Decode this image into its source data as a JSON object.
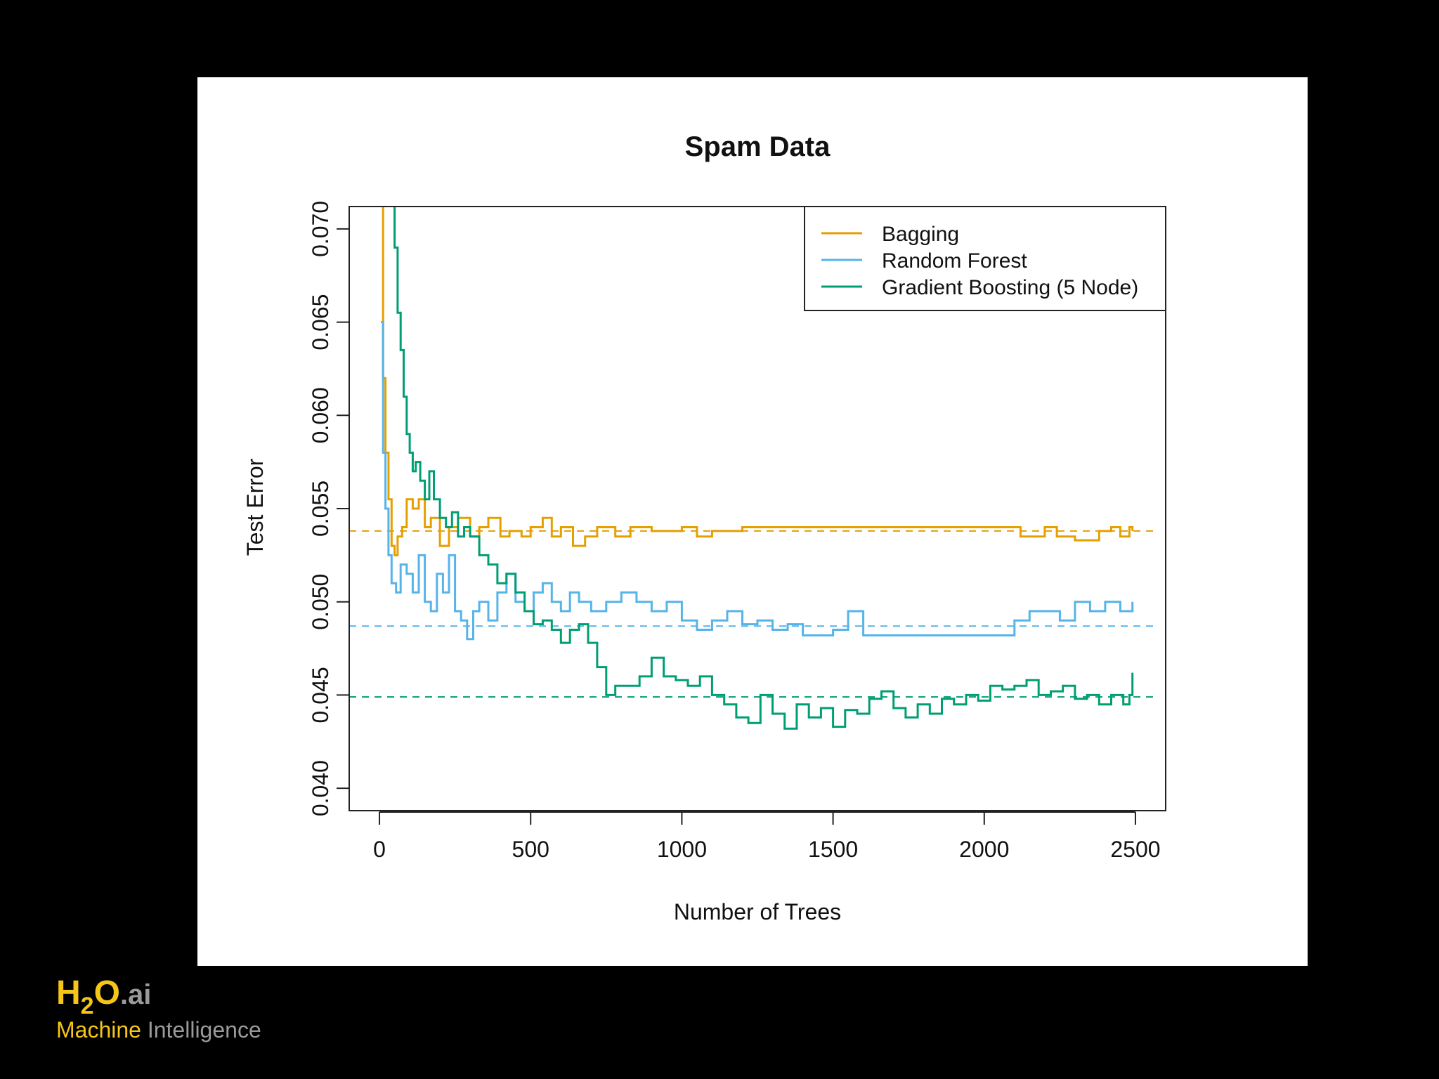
{
  "chart_data": {
    "type": "line",
    "title": "Spam Data",
    "xlabel": "Number of Trees",
    "ylabel": "Test Error",
    "xlim": [
      -100,
      2600
    ],
    "ylim": [
      0.0388,
      0.0712
    ],
    "xticks": [
      0,
      500,
      1000,
      1500,
      2000,
      2500
    ],
    "yticks": [
      0.04,
      0.045,
      0.05,
      0.055,
      0.06,
      0.065,
      0.07
    ],
    "xtick_labels": [
      "0",
      "500",
      "1000",
      "1500",
      "2000",
      "2500"
    ],
    "ytick_labels": [
      "0.040",
      "0.045",
      "0.050",
      "0.055",
      "0.060",
      "0.065",
      "0.070"
    ],
    "legend_position": "top-right",
    "series": [
      {
        "name": "Bagging",
        "color": "#E69F00",
        "baseline": 0.0538,
        "x": [
          5,
          12,
          20,
          30,
          40,
          50,
          60,
          75,
          90,
          110,
          130,
          150,
          170,
          200,
          230,
          260,
          300,
          330,
          360,
          400,
          430,
          470,
          500,
          540,
          570,
          600,
          640,
          680,
          720,
          780,
          830,
          900,
          1000,
          1050,
          1100,
          1200,
          1300,
          1500,
          1700,
          1900,
          2100,
          2120,
          2200,
          2240,
          2300,
          2380,
          2420,
          2450,
          2480,
          2490
        ],
        "y": [
          0.0715,
          0.062,
          0.058,
          0.0555,
          0.053,
          0.0525,
          0.0535,
          0.054,
          0.0555,
          0.055,
          0.0555,
          0.054,
          0.0545,
          0.053,
          0.054,
          0.0545,
          0.0535,
          0.054,
          0.0545,
          0.0535,
          0.0538,
          0.0535,
          0.054,
          0.0545,
          0.0535,
          0.054,
          0.053,
          0.0535,
          0.054,
          0.0535,
          0.054,
          0.0538,
          0.054,
          0.0535,
          0.0538,
          0.054,
          0.054,
          0.054,
          0.054,
          0.054,
          0.054,
          0.0535,
          0.054,
          0.0535,
          0.0533,
          0.0538,
          0.054,
          0.0535,
          0.054,
          0.0538
        ]
      },
      {
        "name": "Random Forest",
        "color": "#56B4E9",
        "baseline": 0.0487,
        "x": [
          5,
          12,
          20,
          30,
          40,
          55,
          70,
          90,
          110,
          130,
          150,
          170,
          190,
          210,
          230,
          250,
          270,
          290,
          310,
          330,
          360,
          390,
          420,
          450,
          480,
          510,
          540,
          570,
          600,
          630,
          660,
          700,
          750,
          800,
          850,
          900,
          950,
          1000,
          1050,
          1100,
          1150,
          1200,
          1250,
          1300,
          1350,
          1400,
          1450,
          1500,
          1550,
          1600,
          1700,
          1800,
          1900,
          2000,
          2100,
          2150,
          2200,
          2250,
          2300,
          2350,
          2400,
          2450,
          2480,
          2490
        ],
        "y": [
          0.065,
          0.058,
          0.055,
          0.0525,
          0.051,
          0.0505,
          0.052,
          0.0515,
          0.0505,
          0.0525,
          0.05,
          0.0495,
          0.0515,
          0.0505,
          0.0525,
          0.0495,
          0.049,
          0.048,
          0.0495,
          0.05,
          0.049,
          0.0505,
          0.0515,
          0.05,
          0.0495,
          0.0505,
          0.051,
          0.05,
          0.0495,
          0.0505,
          0.05,
          0.0495,
          0.05,
          0.0505,
          0.05,
          0.0495,
          0.05,
          0.049,
          0.0485,
          0.049,
          0.0495,
          0.0488,
          0.049,
          0.0485,
          0.0488,
          0.0482,
          0.0482,
          0.0485,
          0.0495,
          0.0482,
          0.0482,
          0.0482,
          0.0482,
          0.0482,
          0.049,
          0.0495,
          0.0495,
          0.049,
          0.05,
          0.0495,
          0.05,
          0.0495,
          0.0495,
          0.05
        ]
      },
      {
        "name": "Gradient Boosting (5 Node)",
        "color": "#009E73",
        "baseline": 0.0449,
        "x": [
          40,
          50,
          60,
          70,
          80,
          90,
          100,
          110,
          120,
          135,
          150,
          165,
          180,
          200,
          220,
          240,
          260,
          280,
          300,
          330,
          360,
          390,
          420,
          450,
          480,
          510,
          540,
          570,
          600,
          630,
          660,
          690,
          720,
          750,
          780,
          820,
          860,
          900,
          940,
          980,
          1020,
          1060,
          1100,
          1140,
          1180,
          1220,
          1260,
          1300,
          1340,
          1380,
          1420,
          1460,
          1500,
          1540,
          1580,
          1620,
          1660,
          1700,
          1740,
          1780,
          1820,
          1860,
          1900,
          1940,
          1980,
          2020,
          2060,
          2100,
          2140,
          2180,
          2220,
          2260,
          2300,
          2340,
          2380,
          2420,
          2460,
          2480,
          2490
        ],
        "y": [
          0.0715,
          0.069,
          0.0655,
          0.0635,
          0.061,
          0.059,
          0.058,
          0.057,
          0.0575,
          0.0565,
          0.0555,
          0.057,
          0.0555,
          0.0545,
          0.054,
          0.0548,
          0.0535,
          0.054,
          0.0535,
          0.0525,
          0.052,
          0.051,
          0.0515,
          0.0505,
          0.0495,
          0.0488,
          0.049,
          0.0485,
          0.0478,
          0.0485,
          0.0488,
          0.0478,
          0.0465,
          0.045,
          0.0455,
          0.0455,
          0.046,
          0.047,
          0.046,
          0.0458,
          0.0455,
          0.046,
          0.045,
          0.0445,
          0.0438,
          0.0435,
          0.045,
          0.044,
          0.0432,
          0.0445,
          0.0438,
          0.0443,
          0.0433,
          0.0442,
          0.044,
          0.0448,
          0.0452,
          0.0443,
          0.0438,
          0.0445,
          0.044,
          0.0448,
          0.0445,
          0.045,
          0.0447,
          0.0455,
          0.0453,
          0.0455,
          0.0458,
          0.045,
          0.0452,
          0.0455,
          0.0448,
          0.045,
          0.0445,
          0.045,
          0.0445,
          0.045,
          0.0462
        ]
      }
    ]
  },
  "branding": {
    "logo_h": "H",
    "logo_sub": "2",
    "logo_o": "O",
    "logo_ai": ".ai",
    "tagline_1": "Machine",
    "tagline_2": "Intelligence"
  }
}
